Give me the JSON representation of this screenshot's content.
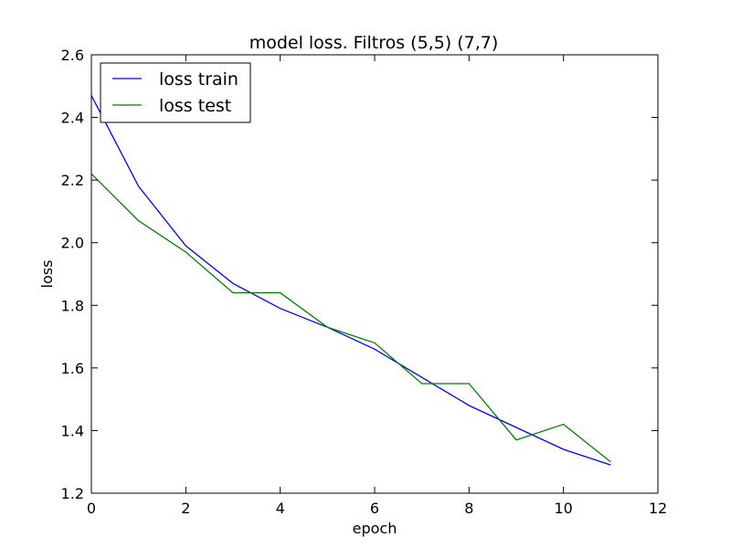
{
  "chart_data": {
    "type": "line",
    "title": "model loss. Filtros (5,5) (7,7)",
    "xlabel": "epoch",
    "ylabel": "loss",
    "xlim": [
      0,
      12
    ],
    "ylim": [
      1.2,
      2.6
    ],
    "xticks": [
      0,
      2,
      4,
      6,
      8,
      10,
      12
    ],
    "yticks": [
      1.2,
      1.4,
      1.6,
      1.8,
      2.0,
      2.2,
      2.4,
      2.6
    ],
    "xtick_labels": [
      "0",
      "2",
      "4",
      "6",
      "8",
      "10",
      "12"
    ],
    "ytick_labels": [
      "1.2",
      "1.4",
      "1.6",
      "1.8",
      "2.0",
      "2.2",
      "2.4",
      "2.6"
    ],
    "grid": false,
    "legend_position": "top-left",
    "x": [
      0,
      1,
      2,
      3,
      4,
      5,
      6,
      7,
      8,
      9,
      10,
      11
    ],
    "series": [
      {
        "name": "loss train",
        "color": "#0000ff",
        "values": [
          2.47,
          2.18,
          1.99,
          1.87,
          1.79,
          1.73,
          1.66,
          1.57,
          1.48,
          1.41,
          1.34,
          1.29
        ]
      },
      {
        "name": "loss test",
        "color": "#008000",
        "values": [
          2.22,
          2.07,
          1.97,
          1.84,
          1.84,
          1.73,
          1.68,
          1.55,
          1.55,
          1.37,
          1.42,
          1.3
        ]
      }
    ]
  }
}
